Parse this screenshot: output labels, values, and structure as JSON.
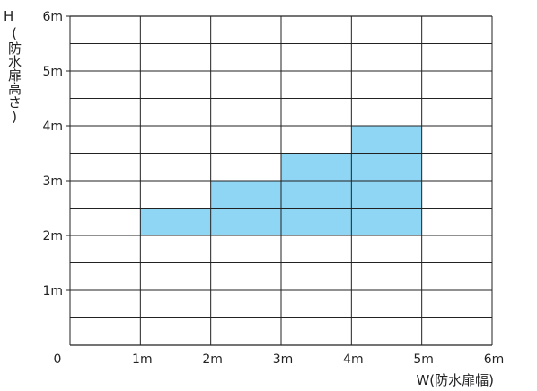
{
  "chart_data": {
    "type": "area",
    "xlabel": "W(防水扉幅)",
    "ylabel_letter": "H",
    "ylabel_text": "(防水扉高さ)",
    "origin_label": "0",
    "xlim": [
      0,
      6
    ],
    "ylim": [
      0,
      6
    ],
    "x_ticks": [
      {
        "value": 1,
        "label": "1m"
      },
      {
        "value": 2,
        "label": "2m"
      },
      {
        "value": 3,
        "label": "3m"
      },
      {
        "value": 4,
        "label": "4m"
      },
      {
        "value": 5,
        "label": "5m"
      },
      {
        "value": 6,
        "label": "6m"
      }
    ],
    "y_ticks": [
      {
        "value": 1,
        "label": "1m"
      },
      {
        "value": 2,
        "label": "2m"
      },
      {
        "value": 3,
        "label": "3m"
      },
      {
        "value": 4,
        "label": "4m"
      },
      {
        "value": 5,
        "label": "5m"
      },
      {
        "value": 6,
        "label": "6m"
      }
    ],
    "grid": true,
    "grid_minor_y_step": 0.5,
    "fill_color": "#8fd6f4",
    "regions": [
      {
        "x0": 1,
        "x1": 2,
        "y0": 2,
        "y1": 2.5
      },
      {
        "x0": 2,
        "x1": 3,
        "y0": 2,
        "y1": 3
      },
      {
        "x0": 3,
        "x1": 4,
        "y0": 2,
        "y1": 3.5
      },
      {
        "x0": 4,
        "x1": 5,
        "y0": 2,
        "y1": 4
      }
    ]
  }
}
